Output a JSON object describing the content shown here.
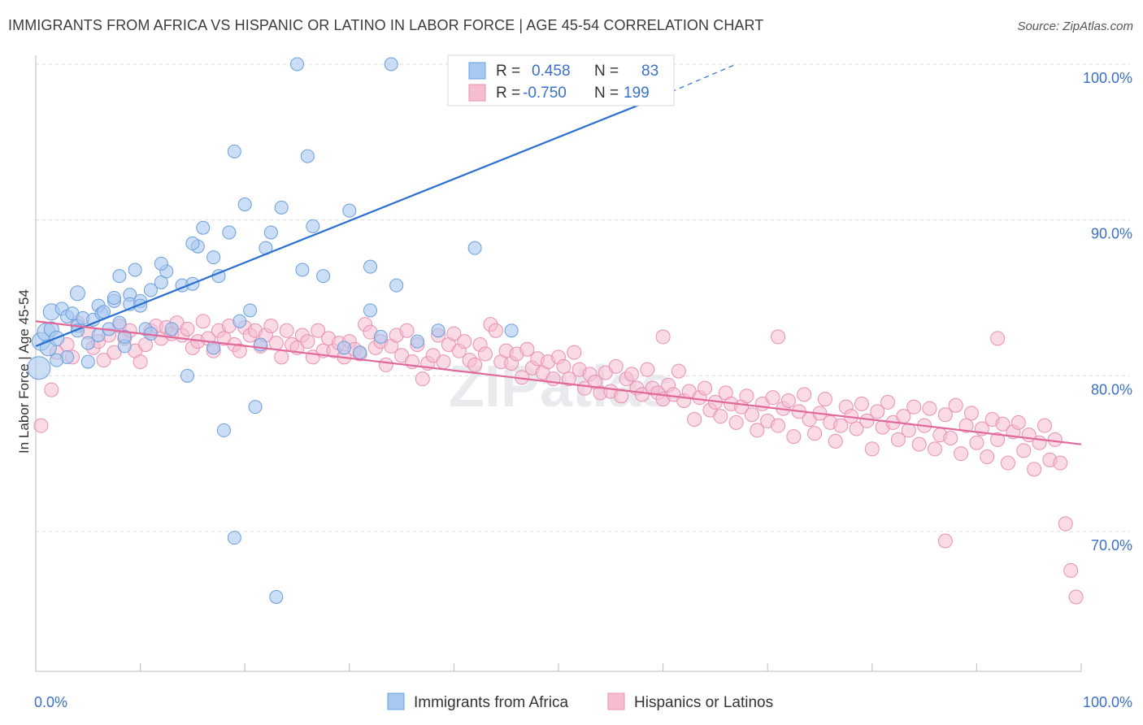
{
  "header": {
    "title": "IMMIGRANTS FROM AFRICA VS HISPANIC OR LATINO IN LABOR FORCE | AGE 45-54 CORRELATION CHART",
    "source": "Source: ZipAtlas.com"
  },
  "watermark": "ZIPatlas",
  "colors": {
    "blue_fill": "#a9c8f0",
    "blue_stroke": "#6a9fdc",
    "blue_line": "#2a6fd0",
    "pink_fill": "#f6bcd0",
    "pink_stroke": "#e990b0",
    "pink_line": "#e2689a",
    "axis_label": "#3a70c8",
    "grid": "#dcdcdc"
  },
  "legend": {
    "r_label": "R =",
    "n_label": "N =",
    "entries": [
      {
        "r": "0.458",
        "n": "83",
        "color": "blue"
      },
      {
        "r": "-0.750",
        "n": "199",
        "color": "pink"
      }
    ]
  },
  "chart_data": {
    "type": "scatter",
    "title": "IMMIGRANTS FROM AFRICA VS HISPANIC OR LATINO IN LABOR FORCE | AGE 45-54 CORRELATION CHART",
    "xlabel": "",
    "ylabel": "In Labor Force | Age 45-54",
    "x_tick_labels": [
      "0.0%",
      "100.0%"
    ],
    "y_tick_labels": [
      "70.0%",
      "80.0%",
      "90.0%",
      "100.0%"
    ],
    "xlim": [
      0,
      100
    ],
    "ylim": [
      60.5,
      101.5
    ],
    "grid": true,
    "legend_position": "top-center",
    "series": [
      {
        "name": "Immigrants from Africa",
        "r": 0.458,
        "n": 83,
        "trend": {
          "x0": 0,
          "y0": 81.9,
          "x1": 60,
          "y1": 98.0,
          "dash_to_x": 67,
          "dash_to_y": 100.0
        },
        "points": [
          [
            0.3,
            80.5,
            14
          ],
          [
            0.5,
            82.2,
            11
          ],
          [
            1.0,
            82.8,
            11
          ],
          [
            1.2,
            81.8,
            10
          ],
          [
            1.5,
            83.0,
            9
          ],
          [
            1.5,
            84.1,
            10
          ],
          [
            2.0,
            82.4,
            9
          ],
          [
            2.5,
            84.3,
            8
          ],
          [
            3.0,
            83.8,
            8
          ],
          [
            3.5,
            84.0,
            8
          ],
          [
            4.0,
            85.3,
            9
          ],
          [
            4.0,
            83.2,
            8
          ],
          [
            4.5,
            83.7,
            8
          ],
          [
            5.0,
            82.1,
            8
          ],
          [
            5.5,
            83.6,
            8
          ],
          [
            6.0,
            82.6,
            8
          ],
          [
            5.0,
            80.9,
            8
          ],
          [
            6.0,
            84.5,
            8
          ],
          [
            6.3,
            84.0,
            8
          ],
          [
            7.0,
            83.0,
            8
          ],
          [
            7.5,
            84.8,
            8
          ],
          [
            8.0,
            83.4,
            8
          ],
          [
            8.5,
            81.9,
            8
          ],
          [
            8.5,
            82.5,
            8
          ],
          [
            7.5,
            85.0,
            8
          ],
          [
            9.0,
            85.2,
            8
          ],
          [
            9.0,
            84.6,
            8
          ],
          [
            8.0,
            86.4,
            8
          ],
          [
            9.5,
            86.8,
            8
          ],
          [
            10.0,
            84.8,
            8
          ],
          [
            10.5,
            83.0,
            8
          ],
          [
            11.0,
            82.7,
            8
          ],
          [
            11.0,
            85.5,
            8
          ],
          [
            12.0,
            86.0,
            8
          ],
          [
            12.5,
            86.7,
            8
          ],
          [
            12.0,
            87.2,
            8
          ],
          [
            13.0,
            83.0,
            8
          ],
          [
            14.0,
            85.8,
            8
          ],
          [
            14.5,
            80.0,
            8
          ],
          [
            15.0,
            85.9,
            8
          ],
          [
            15.5,
            88.3,
            8
          ],
          [
            15.0,
            88.5,
            8
          ],
          [
            16.0,
            89.5,
            8
          ],
          [
            17.0,
            87.6,
            8
          ],
          [
            17.0,
            81.8,
            8
          ],
          [
            17.5,
            86.4,
            8
          ],
          [
            18.0,
            76.5,
            8
          ],
          [
            18.5,
            89.2,
            8
          ],
          [
            19.0,
            94.4,
            8
          ],
          [
            19.0,
            69.6,
            8
          ],
          [
            19.5,
            83.5,
            8
          ],
          [
            20.0,
            91.0,
            8
          ],
          [
            20.5,
            84.2,
            8
          ],
          [
            21.0,
            78.0,
            8
          ],
          [
            21.5,
            82.0,
            8
          ],
          [
            22.0,
            88.2,
            8
          ],
          [
            22.5,
            89.2,
            8
          ],
          [
            23.0,
            65.8,
            8
          ],
          [
            23.5,
            90.8,
            8
          ],
          [
            25.0,
            100.0,
            8
          ],
          [
            25.5,
            86.8,
            8
          ],
          [
            26.0,
            94.1,
            8
          ],
          [
            26.5,
            89.6,
            8
          ],
          [
            27.5,
            86.4,
            8
          ],
          [
            29.5,
            81.8,
            8
          ],
          [
            30.0,
            90.6,
            8
          ],
          [
            31.0,
            81.5,
            8
          ],
          [
            32.0,
            87.0,
            8
          ],
          [
            34.0,
            100.0,
            8
          ],
          [
            32.0,
            84.2,
            8
          ],
          [
            33.0,
            82.5,
            8
          ],
          [
            34.5,
            85.8,
            8
          ],
          [
            36.5,
            82.2,
            8
          ],
          [
            38.5,
            82.9,
            8
          ],
          [
            42.0,
            88.2,
            8
          ],
          [
            43.0,
            100.0,
            8
          ],
          [
            45.0,
            100.0,
            8
          ],
          [
            45.5,
            82.9,
            8
          ],
          [
            4.0,
            82.9,
            8
          ],
          [
            3.0,
            81.2,
            8
          ],
          [
            2.0,
            81.0,
            8
          ],
          [
            6.5,
            84.1,
            8
          ],
          [
            10.0,
            84.5,
            8
          ]
        ]
      },
      {
        "name": "Hispanics or Latinos",
        "r": -0.75,
        "n": 199,
        "trend": {
          "x0": 0,
          "y0": 83.5,
          "x1": 100,
          "y1": 75.6
        },
        "points": [
          [
            0.5,
            76.8
          ],
          [
            1.5,
            79.1
          ],
          [
            2.0,
            81.5
          ],
          [
            3.0,
            82.0
          ],
          [
            3.5,
            81.2
          ],
          [
            4.0,
            83.4
          ],
          [
            5.0,
            82.8
          ],
          [
            5.5,
            81.8
          ],
          [
            6.0,
            82.2
          ],
          [
            6.5,
            81.0
          ],
          [
            7.0,
            82.6
          ],
          [
            7.5,
            81.5
          ],
          [
            8.0,
            83.2
          ],
          [
            8.5,
            82.4
          ],
          [
            9.0,
            82.9
          ],
          [
            9.5,
            81.6
          ],
          [
            10.0,
            80.9
          ],
          [
            10.5,
            82.0
          ],
          [
            11.0,
            82.9
          ],
          [
            11.5,
            83.2
          ],
          [
            12.0,
            82.4
          ],
          [
            12.5,
            83.1
          ],
          [
            13.0,
            82.7
          ],
          [
            13.5,
            83.4
          ],
          [
            14.0,
            82.6
          ],
          [
            14.5,
            83.0
          ],
          [
            15.0,
            81.8
          ],
          [
            15.5,
            82.2
          ],
          [
            16.0,
            83.5
          ],
          [
            16.5,
            82.4
          ],
          [
            17.0,
            81.6
          ],
          [
            17.5,
            82.9
          ],
          [
            18.0,
            82.4
          ],
          [
            18.5,
            83.2
          ],
          [
            19.0,
            82.0
          ],
          [
            19.5,
            81.6
          ],
          [
            20.0,
            83.1
          ],
          [
            20.5,
            82.6
          ],
          [
            21.0,
            82.9
          ],
          [
            21.5,
            81.9
          ],
          [
            22.0,
            82.6
          ],
          [
            22.5,
            83.2
          ],
          [
            23.0,
            82.1
          ],
          [
            23.5,
            81.2
          ],
          [
            24.0,
            82.9
          ],
          [
            24.5,
            82.0
          ],
          [
            25.0,
            81.8
          ],
          [
            25.5,
            82.6
          ],
          [
            26.0,
            82.2
          ],
          [
            26.5,
            81.2
          ],
          [
            27.0,
            82.9
          ],
          [
            27.5,
            81.6
          ],
          [
            28.0,
            82.4
          ],
          [
            28.5,
            81.6
          ],
          [
            29.0,
            82.1
          ],
          [
            29.5,
            81.2
          ],
          [
            30.0,
            82.2
          ],
          [
            30.5,
            81.7
          ],
          [
            31.0,
            81.4
          ],
          [
            31.5,
            83.3
          ],
          [
            32.0,
            82.8
          ],
          [
            32.5,
            81.8
          ],
          [
            33.0,
            82.2
          ],
          [
            33.5,
            80.7
          ],
          [
            34.0,
            81.9
          ],
          [
            34.5,
            82.6
          ],
          [
            35.0,
            81.3
          ],
          [
            35.5,
            82.9
          ],
          [
            36.0,
            80.9
          ],
          [
            36.5,
            82.0
          ],
          [
            37.0,
            79.8
          ],
          [
            37.5,
            80.8
          ],
          [
            38.0,
            81.3
          ],
          [
            38.5,
            82.6
          ],
          [
            39.0,
            80.9
          ],
          [
            39.5,
            82.0
          ],
          [
            40.0,
            82.7
          ],
          [
            40.5,
            81.6
          ],
          [
            41.0,
            82.2
          ],
          [
            41.5,
            81.0
          ],
          [
            42.0,
            80.7
          ],
          [
            42.5,
            82.0
          ],
          [
            43.0,
            81.4
          ],
          [
            43.5,
            83.3
          ],
          [
            44.0,
            82.9
          ],
          [
            44.5,
            80.9
          ],
          [
            45.0,
            81.6
          ],
          [
            45.5,
            80.8
          ],
          [
            46.0,
            81.4
          ],
          [
            46.5,
            79.9
          ],
          [
            47.0,
            81.7
          ],
          [
            47.5,
            80.5
          ],
          [
            48.0,
            81.1
          ],
          [
            48.5,
            80.2
          ],
          [
            49.0,
            80.9
          ],
          [
            49.5,
            79.8
          ],
          [
            50.0,
            81.2
          ],
          [
            50.5,
            80.6
          ],
          [
            51.0,
            79.8
          ],
          [
            51.5,
            81.5
          ],
          [
            52.0,
            80.4
          ],
          [
            52.5,
            79.2
          ],
          [
            53.0,
            80.1
          ],
          [
            53.5,
            79.6
          ],
          [
            54.0,
            78.9
          ],
          [
            54.5,
            80.2
          ],
          [
            55.0,
            79.0
          ],
          [
            55.5,
            80.6
          ],
          [
            56.0,
            78.7
          ],
          [
            56.5,
            79.8
          ],
          [
            57.0,
            80.1
          ],
          [
            57.5,
            79.2
          ],
          [
            58.0,
            78.8
          ],
          [
            58.5,
            80.4
          ],
          [
            59.0,
            79.2
          ],
          [
            59.5,
            78.9
          ],
          [
            60.0,
            78.5
          ],
          [
            60.5,
            79.4
          ],
          [
            61.0,
            78.8
          ],
          [
            61.5,
            80.3
          ],
          [
            62.0,
            78.4
          ],
          [
            62.5,
            79.0
          ],
          [
            63.0,
            77.2
          ],
          [
            63.5,
            78.6
          ],
          [
            64.0,
            79.2
          ],
          [
            64.5,
            77.8
          ],
          [
            65.0,
            78.3
          ],
          [
            65.5,
            77.4
          ],
          [
            66.0,
            78.9
          ],
          [
            66.5,
            78.2
          ],
          [
            67.0,
            77.0
          ],
          [
            67.5,
            78.0
          ],
          [
            68.0,
            78.7
          ],
          [
            68.5,
            77.5
          ],
          [
            69.0,
            76.5
          ],
          [
            69.5,
            78.2
          ],
          [
            70.0,
            77.1
          ],
          [
            70.5,
            78.6
          ],
          [
            71.0,
            76.8
          ],
          [
            71.5,
            77.9
          ],
          [
            72.0,
            78.4
          ],
          [
            72.5,
            76.1
          ],
          [
            73.0,
            77.7
          ],
          [
            73.5,
            78.8
          ],
          [
            74.0,
            77.2
          ],
          [
            74.5,
            76.3
          ],
          [
            75.0,
            77.6
          ],
          [
            75.5,
            78.5
          ],
          [
            76.0,
            77.0
          ],
          [
            76.5,
            75.8
          ],
          [
            77.0,
            76.8
          ],
          [
            77.5,
            78.0
          ],
          [
            78.0,
            77.4
          ],
          [
            78.5,
            76.6
          ],
          [
            79.0,
            78.2
          ],
          [
            79.5,
            77.1
          ],
          [
            80.0,
            75.3
          ],
          [
            80.5,
            77.7
          ],
          [
            81.0,
            76.7
          ],
          [
            81.5,
            78.3
          ],
          [
            82.0,
            77.0
          ],
          [
            82.5,
            75.9
          ],
          [
            83.0,
            77.4
          ],
          [
            83.5,
            76.5
          ],
          [
            84.0,
            78.0
          ],
          [
            84.5,
            75.6
          ],
          [
            85.0,
            76.8
          ],
          [
            85.5,
            77.9
          ],
          [
            86.0,
            75.3
          ],
          [
            86.5,
            76.2
          ],
          [
            87.0,
            77.5
          ],
          [
            87.5,
            76.0
          ],
          [
            88.0,
            78.1
          ],
          [
            88.5,
            75.0
          ],
          [
            89.0,
            76.8
          ],
          [
            89.5,
            77.6
          ],
          [
            90.0,
            75.7
          ],
          [
            90.5,
            76.6
          ],
          [
            91.0,
            74.8
          ],
          [
            91.5,
            77.2
          ],
          [
            92.0,
            75.9
          ],
          [
            92.5,
            76.9
          ],
          [
            93.0,
            74.4
          ],
          [
            93.5,
            76.4
          ],
          [
            94.0,
            77.0
          ],
          [
            94.5,
            75.2
          ],
          [
            95.0,
            76.2
          ],
          [
            95.5,
            74.0
          ],
          [
            96.0,
            75.7
          ],
          [
            96.5,
            76.8
          ],
          [
            97.0,
            74.6
          ],
          [
            97.5,
            75.9
          ],
          [
            98.0,
            74.4
          ],
          [
            98.5,
            70.5
          ],
          [
            99.0,
            67.5
          ],
          [
            99.5,
            65.8
          ],
          [
            87.0,
            69.4
          ],
          [
            92.0,
            82.4
          ],
          [
            71.0,
            82.5
          ],
          [
            60.0,
            82.5
          ]
        ]
      }
    ]
  }
}
